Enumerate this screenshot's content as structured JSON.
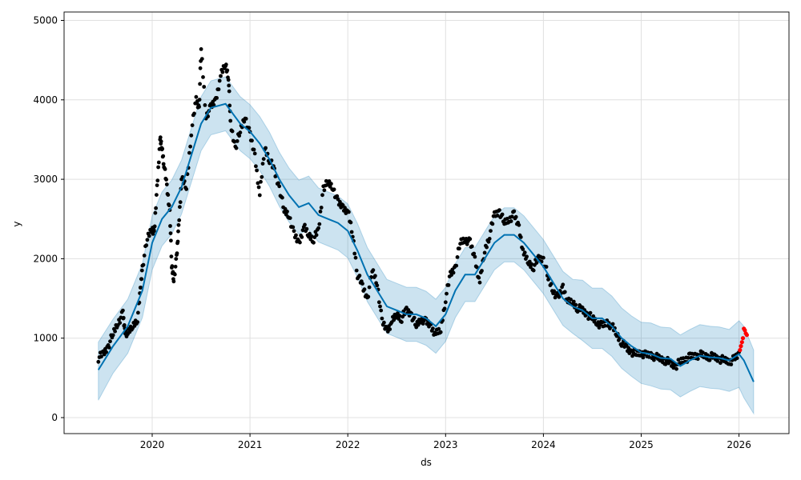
{
  "chart_data": {
    "type": "line",
    "title": "",
    "xlabel": "ds",
    "ylabel": "y",
    "xlim": [
      2019.2,
      2026.5
    ],
    "ylim": [
      -200,
      5150
    ],
    "grid": true,
    "xticks": [
      "2020",
      "2021",
      "2022",
      "2023",
      "2024",
      "2025",
      "2026"
    ],
    "yticks": [
      "0",
      "1000",
      "2000",
      "3000",
      "4000",
      "5000"
    ],
    "colors": {
      "forecast": "#0072B2",
      "band": "#0072B2",
      "observed": "#000000",
      "recent": "#ff0000"
    },
    "forecast": {
      "x": [
        2019.45,
        2019.6,
        2019.75,
        2019.9,
        2020.0,
        2020.1,
        2020.2,
        2020.3,
        2020.4,
        2020.5,
        2020.6,
        2020.75,
        2020.9,
        2021.0,
        2021.1,
        2021.2,
        2021.3,
        2021.4,
        2021.5,
        2021.6,
        2021.7,
        2021.8,
        2021.9,
        2022.0,
        2022.1,
        2022.2,
        2022.3,
        2022.4,
        2022.5,
        2022.6,
        2022.7,
        2022.8,
        2022.9,
        2023.0,
        2023.1,
        2023.2,
        2023.3,
        2023.4,
        2023.5,
        2023.6,
        2023.7,
        2023.8,
        2023.9,
        2024.0,
        2024.1,
        2024.2,
        2024.3,
        2024.4,
        2024.5,
        2024.6,
        2024.7,
        2024.8,
        2024.9,
        2025.0,
        2025.1,
        2025.2,
        2025.3,
        2025.4,
        2025.5,
        2025.6,
        2025.7,
        2025.8,
        2025.9,
        2026.0,
        2026.05,
        2026.15
      ],
      "yhat": [
        600,
        900,
        1150,
        1600,
        2200,
        2500,
        2650,
        2900,
        3300,
        3700,
        3900,
        3950,
        3700,
        3600,
        3450,
        3250,
        3000,
        2800,
        2650,
        2700,
        2550,
        2500,
        2450,
        2350,
        2100,
        1800,
        1600,
        1400,
        1350,
        1300,
        1300,
        1250,
        1150,
        1300,
        1600,
        1800,
        1800,
        2000,
        2200,
        2300,
        2300,
        2200,
        2050,
        1900,
        1700,
        1500,
        1400,
        1350,
        1250,
        1250,
        1150,
        1000,
        900,
        820,
        800,
        750,
        740,
        650,
        720,
        780,
        760,
        750,
        720,
        800,
        720,
        450
      ],
      "yhat_lower": [
        220,
        560,
        810,
        1260,
        1860,
        2160,
        2310,
        2560,
        2960,
        3360,
        3560,
        3610,
        3360,
        3260,
        3110,
        2910,
        2660,
        2460,
        2310,
        2360,
        2210,
        2160,
        2110,
        2010,
        1760,
        1460,
        1260,
        1060,
        1010,
        960,
        960,
        910,
        810,
        960,
        1260,
        1460,
        1460,
        1660,
        1860,
        1960,
        1960,
        1860,
        1710,
        1560,
        1360,
        1160,
        1060,
        970,
        870,
        870,
        770,
        620,
        520,
        430,
        400,
        360,
        350,
        260,
        330,
        390,
        370,
        360,
        330,
        380,
        250,
        50
      ],
      "yhat_upper": [
        950,
        1240,
        1490,
        1940,
        2540,
        2840,
        2990,
        3240,
        3640,
        4040,
        4240,
        4290,
        4040,
        3940,
        3790,
        3590,
        3340,
        3140,
        2990,
        3040,
        2890,
        2840,
        2790,
        2690,
        2440,
        2140,
        1940,
        1740,
        1690,
        1640,
        1640,
        1590,
        1490,
        1640,
        1940,
        2140,
        2140,
        2340,
        2540,
        2640,
        2640,
        2540,
        2390,
        2240,
        2040,
        1840,
        1740,
        1730,
        1630,
        1630,
        1530,
        1380,
        1280,
        1200,
        1190,
        1140,
        1130,
        1040,
        1110,
        1170,
        1150,
        1140,
        1110,
        1220,
        1150,
        850
      ]
    },
    "observed": {
      "x": [
        2019.45,
        2019.5,
        2019.55,
        2019.6,
        2019.65,
        2019.7,
        2019.72,
        2019.75,
        2019.8,
        2019.85,
        2019.88,
        2019.9,
        2019.95,
        2020.0,
        2020.02,
        2020.05,
        2020.08,
        2020.1,
        2020.12,
        2020.15,
        2020.18,
        2020.2,
        2020.22,
        2020.25,
        2020.27,
        2020.3,
        2020.35,
        2020.4,
        2020.45,
        2020.48,
        2020.5,
        2020.55,
        2020.6,
        2020.65,
        2020.7,
        2020.75,
        2020.78,
        2020.8,
        2020.85,
        2020.9,
        2020.95,
        2021.0,
        2021.05,
        2021.1,
        2021.15,
        2021.2,
        2021.25,
        2021.3,
        2021.35,
        2021.4,
        2021.45,
        2021.5,
        2021.55,
        2021.6,
        2021.65,
        2021.7,
        2021.75,
        2021.8,
        2021.85,
        2021.9,
        2021.95,
        2022.0,
        2022.05,
        2022.1,
        2022.15,
        2022.2,
        2022.25,
        2022.3,
        2022.35,
        2022.4,
        2022.45,
        2022.5,
        2022.55,
        2022.6,
        2022.65,
        2022.7,
        2022.75,
        2022.8,
        2022.85,
        2022.9,
        2022.95,
        2023.0,
        2023.05,
        2023.1,
        2023.15,
        2023.2,
        2023.25,
        2023.3,
        2023.35,
        2023.4,
        2023.45,
        2023.5,
        2023.55,
        2023.6,
        2023.65,
        2023.7,
        2023.75,
        2023.8,
        2023.85,
        2023.9,
        2023.95,
        2024.0,
        2024.05,
        2024.1,
        2024.15,
        2024.2,
        2024.25,
        2024.3,
        2024.35,
        2024.4,
        2024.45,
        2024.5,
        2024.55,
        2024.6,
        2024.65,
        2024.7,
        2024.75,
        2024.8,
        2024.85,
        2024.9,
        2024.95,
        2025.0,
        2025.05,
        2025.1,
        2025.15,
        2025.2,
        2025.25,
        2025.3,
        2025.35,
        2025.4,
        2025.45,
        2025.5,
        2025.55,
        2025.6,
        2025.65,
        2025.7,
        2025.75,
        2025.8,
        2025.85,
        2025.9,
        2025.95,
        2026.0
      ],
      "y": [
        750,
        800,
        900,
        1050,
        1200,
        1300,
        1100,
        1050,
        1150,
        1250,
        1600,
        1900,
        2250,
        2400,
        2300,
        2900,
        3500,
        3400,
        3200,
        2900,
        2600,
        1900,
        1750,
        2000,
        2400,
        3000,
        2900,
        3600,
        4000,
        3900,
        4650,
        3800,
        3900,
        4000,
        4300,
        4450,
        4300,
        3700,
        3400,
        3600,
        3800,
        3550,
        3300,
        2800,
        3400,
        3250,
        3100,
        2900,
        2600,
        2550,
        2300,
        2200,
        2400,
        2300,
        2250,
        2350,
        2900,
        2950,
        2900,
        2700,
        2650,
        2600,
        2300,
        1800,
        1650,
        1500,
        1850,
        1700,
        1200,
        1100,
        1200,
        1300,
        1250,
        1350,
        1300,
        1150,
        1250,
        1200,
        1150,
        1050,
        1100,
        1500,
        1800,
        1900,
        2200,
        2250,
        2200,
        2000,
        1700,
        2100,
        2300,
        2550,
        2600,
        2450,
        2500,
        2550,
        2400,
        2050,
        1950,
        1900,
        2000,
        2000,
        1750,
        1600,
        1500,
        1650,
        1450,
        1450,
        1380,
        1350,
        1300,
        1250,
        1200,
        1150,
        1200,
        1150,
        1050,
        950,
        870,
        830,
        800,
        820,
        780,
        790,
        760,
        740,
        720,
        680,
        650,
        700,
        740,
        760,
        780,
        790,
        780,
        770,
        760,
        740,
        720,
        710,
        730,
        800
      ]
    },
    "recent": {
      "x": [
        2026.01,
        2026.02,
        2026.03,
        2026.04,
        2026.05,
        2026.06,
        2026.07,
        2026.08
      ],
      "y": [
        850,
        900,
        950,
        1000,
        1120,
        1100,
        1060,
        1040
      ]
    }
  }
}
